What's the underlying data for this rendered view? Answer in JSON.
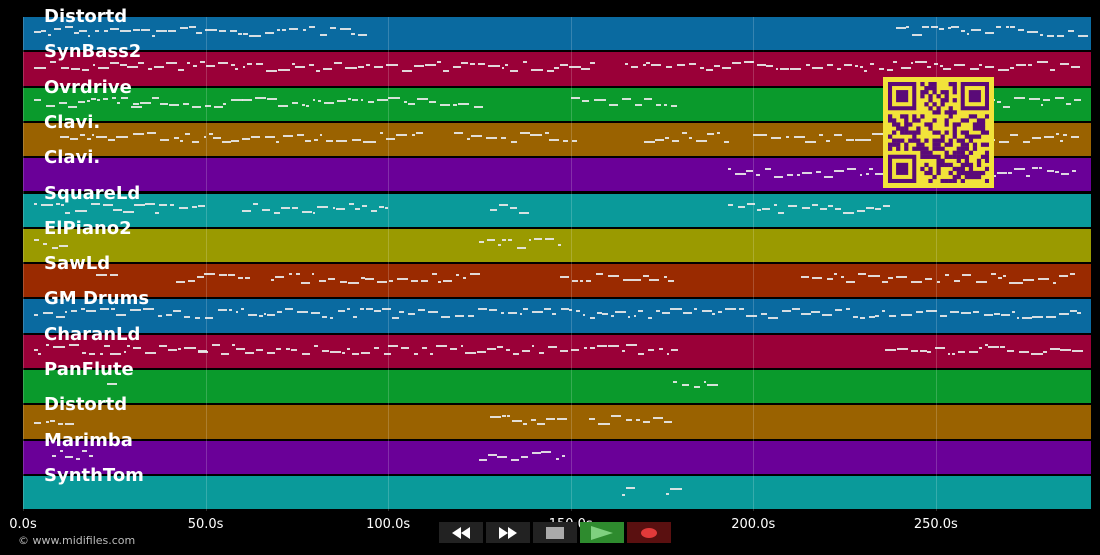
{
  "tracks": [
    {
      "name": "Distortd",
      "color": "#0a6aa0"
    },
    {
      "name": "SynBass2",
      "color": "#9a0038"
    },
    {
      "name": "Ovrdrive",
      "color": "#0a9a2c"
    },
    {
      "name": "Clavi.",
      "color": "#9a6200"
    },
    {
      "name": "Clavi.",
      "color": "#6a0098"
    },
    {
      "name": "SquareLd",
      "color": "#0a9a9a"
    },
    {
      "name": "ElPiano2",
      "color": "#9a9a00"
    },
    {
      "name": "SawLd",
      "color": "#9a2a00"
    },
    {
      "name": "GM Drums",
      "color": "#0a6aa0"
    },
    {
      "name": "CharanLd",
      "color": "#9a0038"
    },
    {
      "name": "PanFlute",
      "color": "#0a9a2c"
    },
    {
      "name": "Distortd",
      "color": "#9a6200"
    },
    {
      "name": "Marimba",
      "color": "#6a0098"
    },
    {
      "name": "SynthTom",
      "color": "#0a9a9a"
    }
  ],
  "time_axis": {
    "ticks": [
      "0.0s",
      "50.0s",
      "100.0s",
      "150.0s",
      "200.0s",
      "250.0s"
    ],
    "tick_values": [
      0,
      50,
      100,
      150,
      200,
      250
    ],
    "max_seconds": 292.5
  },
  "transport": {
    "buttons": [
      {
        "name": "rewind-button",
        "icon": "rewind-icon"
      },
      {
        "name": "fast-forward-button",
        "icon": "fast-forward-icon"
      },
      {
        "name": "stop-button",
        "icon": "stop-icon"
      },
      {
        "name": "play-button",
        "icon": "play-icon"
      },
      {
        "name": "record-button",
        "icon": "record-icon"
      }
    ]
  },
  "copyright": "© www.midifiles.com",
  "qr_code": {
    "icon": "qr-code-icon"
  }
}
